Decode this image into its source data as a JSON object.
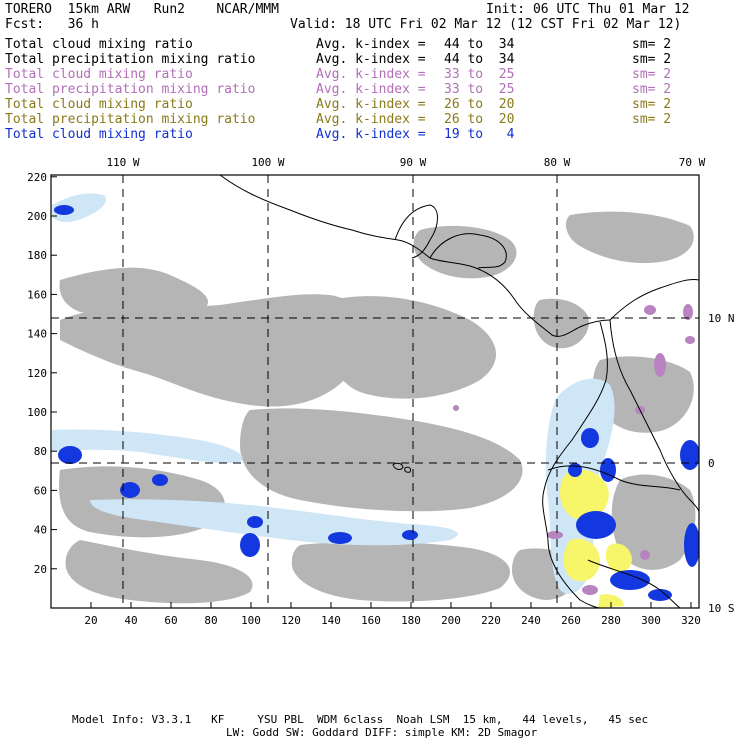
{
  "header": {
    "model": "TORERO  15km ARW   Run2    NCAR/MMM",
    "init": "Init: 06 UTC Thu 01 Mar 12",
    "fcst": "Fcst:   36 h",
    "valid": "Valid: 18 UTC Fri 02 Mar 12 (12 CST Fri 02 Mar 12)"
  },
  "legend": [
    {
      "field": "Total cloud mixing ratio",
      "kidx": "Avg. k-index = ",
      "range": "44 to  34",
      "sm": "sm= 2",
      "color": "#000000"
    },
    {
      "field": "Total precipitation mixing ratio",
      "kidx": "Avg. k-index = ",
      "range": "44 to  34",
      "sm": "sm= 2",
      "color": "#000000"
    },
    {
      "field": "Total cloud mixing ratio",
      "kidx": "Avg. k-index = ",
      "range": "33 to  25",
      "sm": "sm= 2",
      "color": "#b36fb8"
    },
    {
      "field": "Total precipitation mixing ratio",
      "kidx": "Avg. k-index = ",
      "range": "33 to  25",
      "sm": "sm= 2",
      "color": "#b36fb8"
    },
    {
      "field": "Total cloud mixing ratio",
      "kidx": "Avg. k-index = ",
      "range": "26 to  20",
      "sm": "sm= 2",
      "color": "#8a7a1a"
    },
    {
      "field": "Total precipitation mixing ratio",
      "kidx": "Avg. k-index = ",
      "range": "26 to  20",
      "sm": "sm= 2",
      "color": "#8a7a1a"
    },
    {
      "field": "Total cloud mixing ratio",
      "kidx": "Avg. k-index = ",
      "range": "19 to   4",
      "sm": "",
      "color": "#1030d0"
    }
  ],
  "map": {
    "top_lon_labels": [
      "110 W",
      "100 W",
      "90 W",
      "80 W",
      "70 W"
    ],
    "right_lat_labels": [
      "10 N",
      "0",
      "10 S"
    ],
    "left_y_ticks": [
      "220",
      "200",
      "180",
      "160",
      "140",
      "120",
      "100",
      "80",
      "60",
      "40",
      "20"
    ],
    "bottom_x_ticks": [
      "20",
      "40",
      "60",
      "80",
      "100",
      "120",
      "140",
      "160",
      "180",
      "200",
      "220",
      "240",
      "260",
      "280",
      "300",
      "320"
    ],
    "colors": {
      "cloud": "#a9a9a9",
      "light": "#cfe6f7",
      "blue": "#1438e0",
      "yellow": "#f7f56a",
      "purple": "#b784c0"
    }
  },
  "footer": {
    "line1": "Model Info: V3.3.1   KF     YSU PBL  WDM 6class  Noah LSM  15 km,   44 levels,   45 sec",
    "line2": "LW: Godd SW: Goddard DIFF: simple KM: 2D Smagor"
  }
}
